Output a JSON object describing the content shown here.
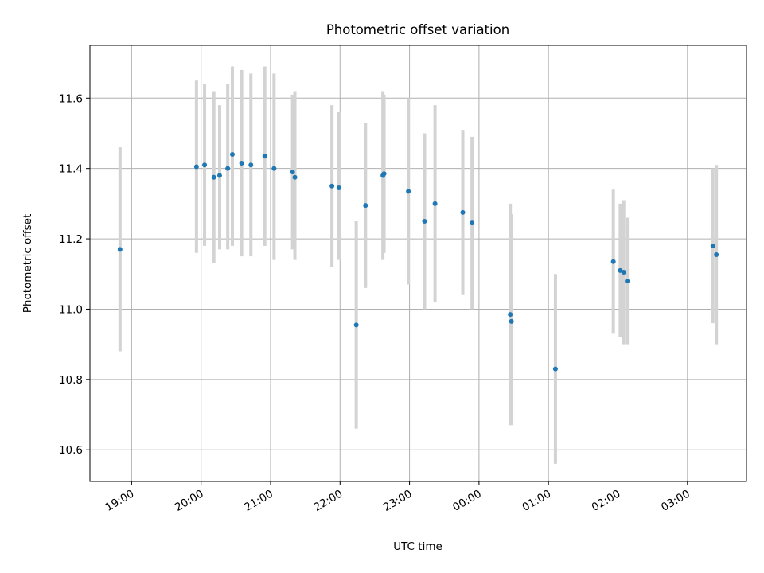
{
  "chart_data": {
    "type": "scatter",
    "title": "Photometric offset variation",
    "xlabel": "UTC time",
    "ylabel": "Photometric offset",
    "x_tick_labels": [
      "19:00",
      "20:00",
      "21:00",
      "22:00",
      "23:00",
      "00:00",
      "01:00",
      "02:00",
      "03:00"
    ],
    "y_tick_labels": [
      "10.6",
      "10.8",
      "11.0",
      "11.2",
      "11.4",
      "11.6"
    ],
    "xlim": [
      "18:24",
      "03:51"
    ],
    "ylim": [
      10.51,
      11.75
    ],
    "grid": true,
    "marker_color": "#1f77b4",
    "errorbar_color": "#d3d3d3",
    "points": [
      {
        "t": "18:50",
        "y": 11.17,
        "lo": 10.88,
        "hi": 11.46
      },
      {
        "t": "19:56",
        "y": 11.405,
        "lo": 11.16,
        "hi": 11.65
      },
      {
        "t": "20:03",
        "y": 11.41,
        "lo": 11.18,
        "hi": 11.64
      },
      {
        "t": "20:11",
        "y": 11.375,
        "lo": 11.13,
        "hi": 11.62
      },
      {
        "t": "20:16",
        "y": 11.38,
        "lo": 11.17,
        "hi": 11.58
      },
      {
        "t": "20:23",
        "y": 11.4,
        "lo": 11.17,
        "hi": 11.64
      },
      {
        "t": "20:27",
        "y": 11.44,
        "lo": 11.18,
        "hi": 11.69
      },
      {
        "t": "20:35",
        "y": 11.415,
        "lo": 11.15,
        "hi": 11.68
      },
      {
        "t": "20:43",
        "y": 11.41,
        "lo": 11.15,
        "hi": 11.67
      },
      {
        "t": "20:55",
        "y": 11.435,
        "lo": 11.18,
        "hi": 11.69
      },
      {
        "t": "21:03",
        "y": 11.4,
        "lo": 11.14,
        "hi": 11.67
      },
      {
        "t": "21:19",
        "y": 11.39,
        "lo": 11.17,
        "hi": 11.61
      },
      {
        "t": "21:21",
        "y": 11.375,
        "lo": 11.14,
        "hi": 11.62
      },
      {
        "t": "21:53",
        "y": 11.35,
        "lo": 11.12,
        "hi": 11.58
      },
      {
        "t": "21:59",
        "y": 11.345,
        "lo": 11.14,
        "hi": 11.56
      },
      {
        "t": "22:14",
        "y": 10.955,
        "lo": 10.66,
        "hi": 11.25
      },
      {
        "t": "22:22",
        "y": 11.295,
        "lo": 11.06,
        "hi": 11.53
      },
      {
        "t": "22:37",
        "y": 11.38,
        "lo": 11.14,
        "hi": 11.62
      },
      {
        "t": "22:38",
        "y": 11.385,
        "lo": 11.16,
        "hi": 11.61
      },
      {
        "t": "22:59",
        "y": 11.335,
        "lo": 11.07,
        "hi": 11.6
      },
      {
        "t": "23:13",
        "y": 11.25,
        "lo": 11.0,
        "hi": 11.5
      },
      {
        "t": "23:22",
        "y": 11.3,
        "lo": 11.02,
        "hi": 11.58
      },
      {
        "t": "23:46",
        "y": 11.275,
        "lo": 11.04,
        "hi": 11.51
      },
      {
        "t": "23:54",
        "y": 11.245,
        "lo": 11.0,
        "hi": 11.49
      },
      {
        "t": "00:27",
        "y": 10.985,
        "lo": 10.67,
        "hi": 11.3
      },
      {
        "t": "00:28",
        "y": 10.965,
        "lo": 10.67,
        "hi": 11.27
      },
      {
        "t": "01:06",
        "y": 10.83,
        "lo": 10.56,
        "hi": 11.1
      },
      {
        "t": "01:56",
        "y": 11.135,
        "lo": 10.93,
        "hi": 11.34
      },
      {
        "t": "02:02",
        "y": 11.11,
        "lo": 10.92,
        "hi": 11.3
      },
      {
        "t": "02:05",
        "y": 11.105,
        "lo": 10.9,
        "hi": 11.31
      },
      {
        "t": "02:08",
        "y": 11.08,
        "lo": 10.9,
        "hi": 11.26
      },
      {
        "t": "03:22",
        "y": 11.18,
        "lo": 10.96,
        "hi": 11.4
      },
      {
        "t": "03:25",
        "y": 11.155,
        "lo": 10.9,
        "hi": 11.41
      }
    ]
  }
}
